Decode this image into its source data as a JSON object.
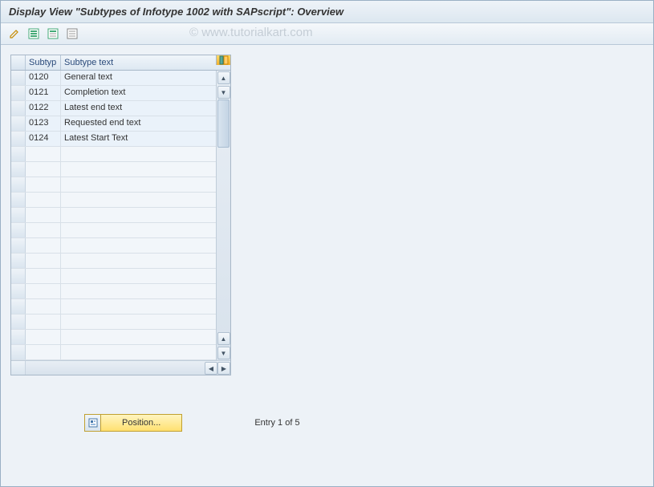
{
  "title": "Display View \"Subtypes of Infotype 1002 with SAPscript\": Overview",
  "watermark": "© www.tutorialkart.com",
  "toolbar_icons": [
    "edit-icon",
    "select-all-icon",
    "select-block-icon",
    "deselect-all-icon"
  ],
  "table": {
    "columns": {
      "subtyp": "Subtyp",
      "subtype_text": "Subtype text"
    },
    "rows": [
      {
        "subtyp": "0120",
        "text": "General text"
      },
      {
        "subtyp": "0121",
        "text": "Completion text"
      },
      {
        "subtyp": "0122",
        "text": "Latest end text"
      },
      {
        "subtyp": "0123",
        "text": "Requested end text"
      },
      {
        "subtyp": "0124",
        "text": "Latest Start Text"
      }
    ],
    "empty_rows": 14
  },
  "footer": {
    "position_label": "Position...",
    "entry_status": "Entry 1 of 5"
  },
  "colors": {
    "header_bg": "#dce7f0",
    "row_bg": "#eaf2fa",
    "border": "#a8b8c8",
    "accent": "#ffe070"
  }
}
